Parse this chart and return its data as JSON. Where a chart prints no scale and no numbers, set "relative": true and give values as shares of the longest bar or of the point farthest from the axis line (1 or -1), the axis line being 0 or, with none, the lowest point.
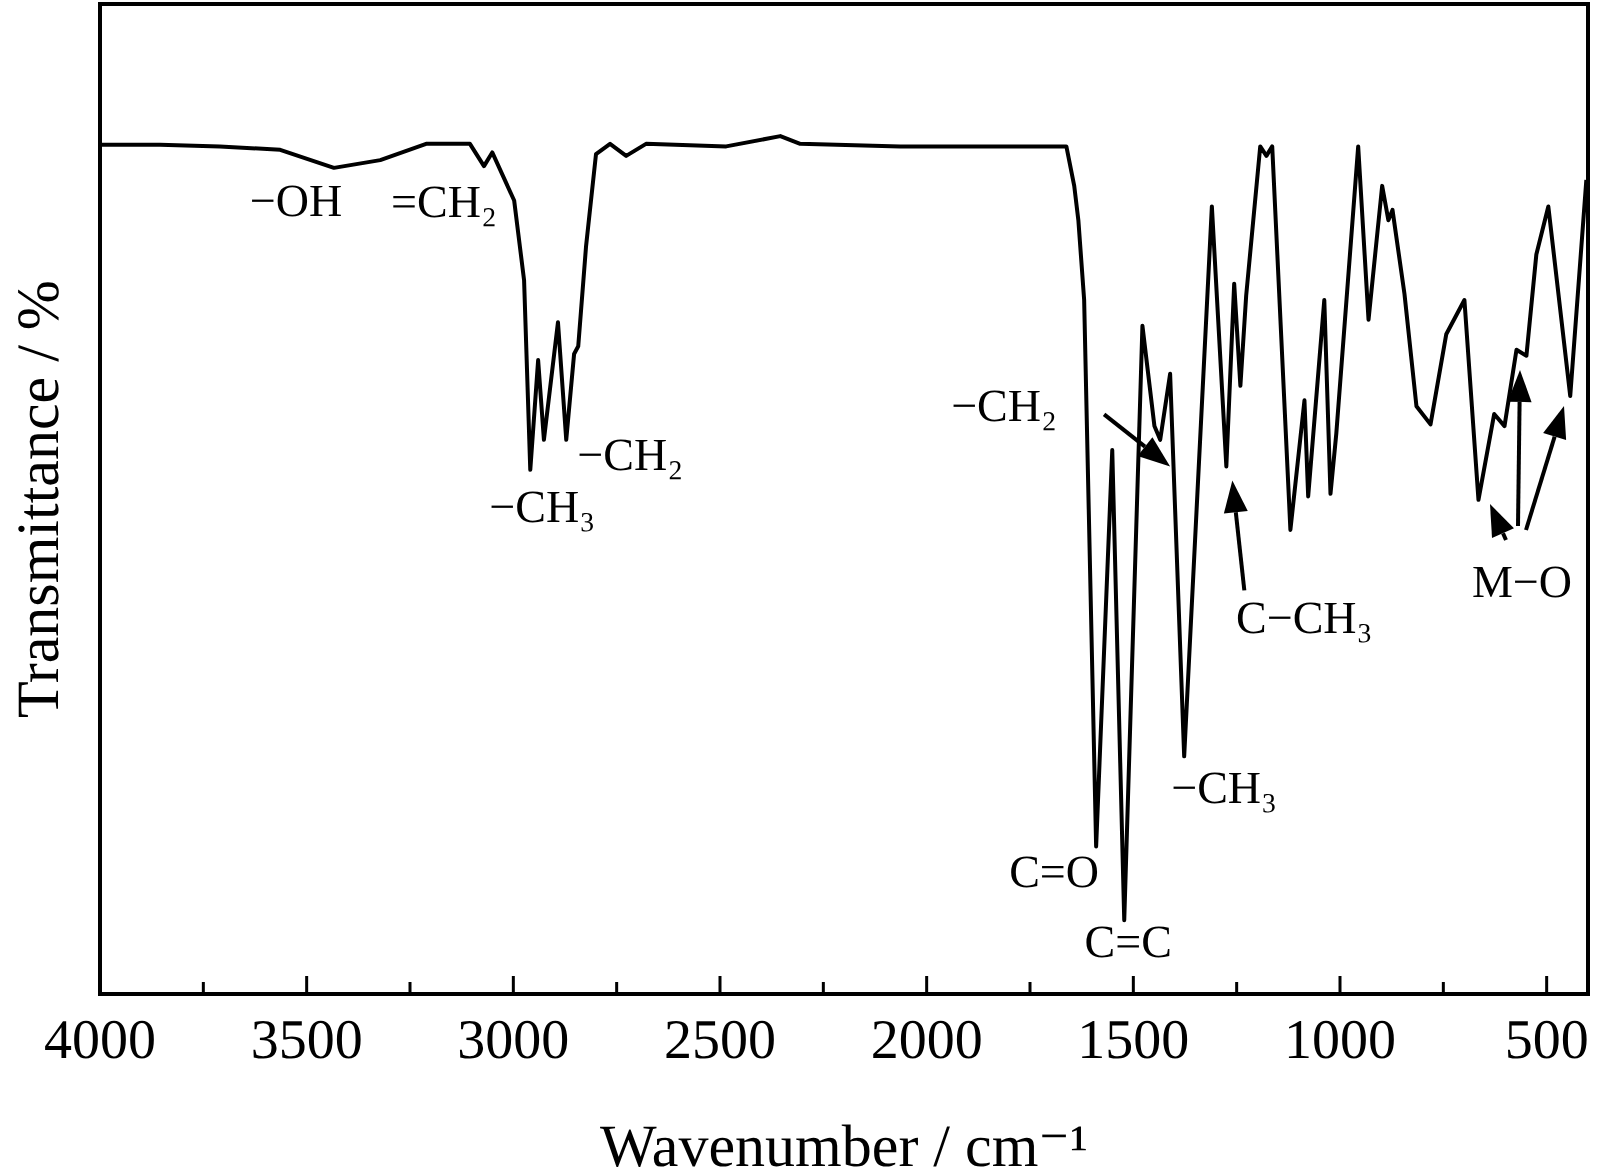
{
  "chart_data": {
    "type": "line",
    "xlabel": "Wavenumber / cm⁻¹",
    "ylabel": "Transmittance / %",
    "relative": true,
    "x": [
      4000,
      3855,
      3710,
      3564,
      3434,
      3322,
      3211,
      3105,
      3071,
      3051,
      2998,
      2974,
      2959,
      2940,
      2926,
      2892,
      2872,
      2853,
      2843,
      2824,
      2800,
      2766,
      2727,
      2679,
      2485,
      2354,
      2306,
      2064,
      1822,
      1662,
      1643,
      1633,
      1619,
      1590,
      1551,
      1522,
      1478,
      1449,
      1435,
      1411,
      1377,
      1310,
      1275,
      1256,
      1241,
      1227,
      1193,
      1178,
      1164,
      1120,
      1086,
      1077,
      1038,
      1023,
      1009,
      956,
      931,
      898,
      883,
      873,
      844,
      815,
      781,
      743,
      699,
      665,
      627,
      602,
      573,
      549,
      525,
      496,
      443,
      404
    ],
    "series": [
      {
        "color": "#000000",
        "values": [
          0.99,
          0.99,
          0.988,
          0.984,
          0.963,
          0.972,
          0.991,
          0.991,
          0.965,
          0.981,
          0.925,
          0.832,
          0.611,
          0.739,
          0.646,
          0.783,
          0.646,
          0.746,
          0.755,
          0.872,
          0.979,
          0.991,
          0.977,
          0.991,
          0.988,
          1.0,
          0.991,
          0.988,
          0.988,
          0.988,
          0.942,
          0.902,
          0.809,
          0.172,
          0.634,
          0.086,
          0.779,
          0.662,
          0.646,
          0.723,
          0.277,
          0.918,
          0.615,
          0.828,
          0.709,
          0.814,
          0.988,
          0.977,
          0.988,
          0.541,
          0.692,
          0.58,
          0.809,
          0.583,
          0.653,
          0.988,
          0.786,
          0.942,
          0.902,
          0.914,
          0.816,
          0.685,
          0.664,
          0.769,
          0.809,
          0.576,
          0.676,
          0.662,
          0.751,
          0.744,
          0.862,
          0.918,
          0.697,
          0.949
        ]
      }
    ],
    "xlim": [
      4000,
      400
    ],
    "xticks": [
      4000,
      {
        "value": 3750,
        "label": null
      },
      3500,
      {
        "value": 3250,
        "label": null
      },
      3000,
      {
        "value": 2750,
        "label": null
      },
      2500,
      {
        "value": 2250,
        "label": null
      },
      2000,
      {
        "value": 1750,
        "label": null
      },
      1500,
      {
        "value": 1250,
        "label": null
      },
      1000,
      {
        "value": 750,
        "label": null
      },
      500
    ],
    "annotations": [
      {
        "text": "−OH",
        "x": 3434,
        "y": 0.963
      },
      {
        "text": "=CH₂",
        "x": 3071,
        "y": 0.965
      },
      {
        "text": "−CH₃",
        "x": 2959,
        "y": 0.611
      },
      {
        "text": "−CH₂",
        "x": 2872,
        "y": 0.646
      },
      {
        "text": "−CH₂",
        "x": 1411,
        "y": 0.615
      },
      {
        "text": "C−CH₃",
        "x": 1275,
        "y": 0.615
      },
      {
        "text": "−CH₃",
        "x": 1377,
        "y": 0.277
      },
      {
        "text": "C=O",
        "x": 1590,
        "y": 0.172
      },
      {
        "text": "C=C",
        "x": 1522,
        "y": 0.086
      },
      "M−O"
    ]
  }
}
